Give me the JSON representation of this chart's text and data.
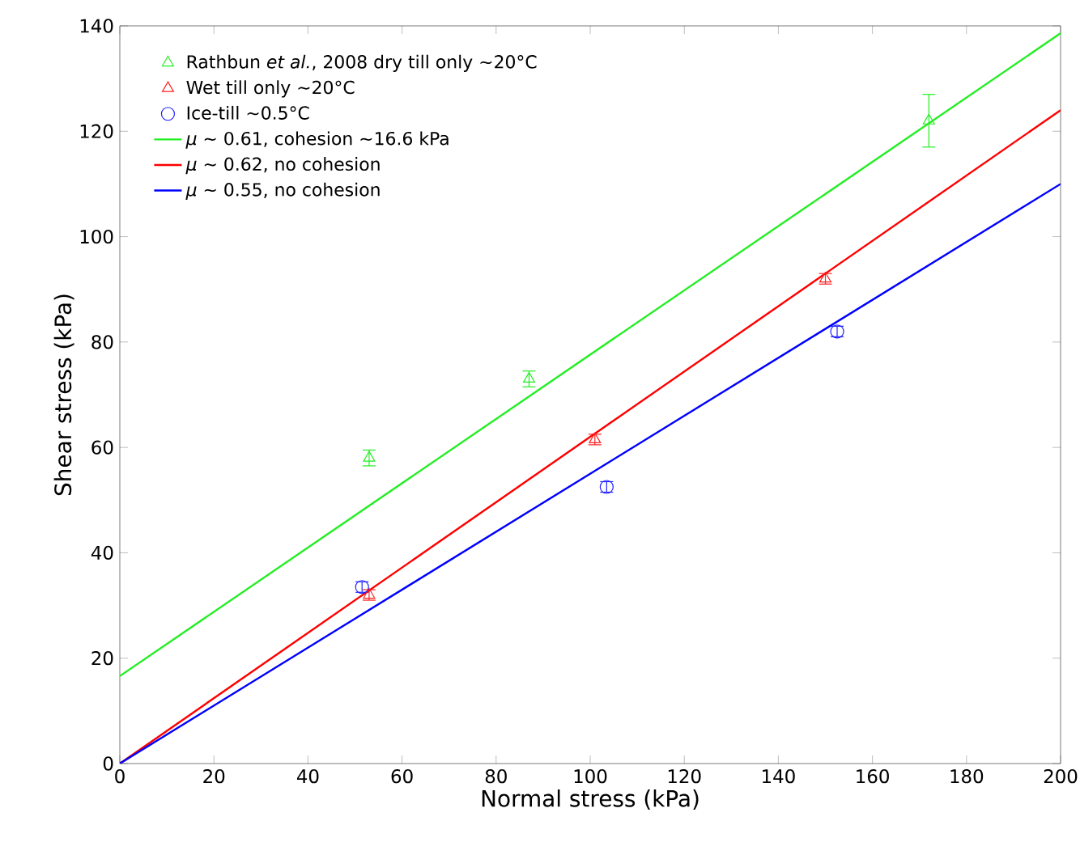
{
  "chart_data": {
    "type": "scatter",
    "xlabel": "Normal stress (kPa)",
    "ylabel": "Shear stress (kPa)",
    "xlim": [
      0,
      200
    ],
    "ylim": [
      0,
      140
    ],
    "xticks": [
      0,
      20,
      40,
      60,
      80,
      100,
      120,
      140,
      160,
      180,
      200
    ],
    "yticks": [
      0,
      20,
      40,
      60,
      80,
      100,
      120,
      140
    ],
    "grid": false,
    "legend": "top left",
    "series": [
      {
        "name": "Rathbun *et al.*, 2008 dry till only ~20°C",
        "marker": "triangle",
        "color": "#22ee22",
        "x": [
          53,
          87,
          172
        ],
        "values": [
          58,
          73,
          122
        ],
        "errors": [
          1.5,
          1.5,
          5
        ]
      },
      {
        "name": "Wet till only ~20°C",
        "marker": "triangle",
        "color": "#ff2020",
        "x": [
          53,
          101,
          150
        ],
        "values": [
          32,
          61.5,
          92
        ],
        "errors": [
          1,
          1,
          1
        ]
      },
      {
        "name": "Ice-till ~0.5°C",
        "marker": "circle",
        "color": "#2020ff",
        "x": [
          51.5,
          103.5,
          152.5
        ],
        "values": [
          33.5,
          52.5,
          82
        ],
        "errors": [
          1,
          1,
          1
        ]
      },
      {
        "name": "*μ* ~ 0.61, cohesion ~16.6 kPa",
        "type": "line",
        "marker": "none",
        "color": "#22ee22",
        "x": [
          0,
          200
        ],
        "values": [
          16.6,
          138.6
        ]
      },
      {
        "name": "*μ* ~ 0.62, no cohesion",
        "type": "line",
        "marker": "none",
        "color": "#ff0000",
        "x": [
          0,
          200
        ],
        "values": [
          0,
          124
        ]
      },
      {
        "name": "*μ* ~ 0.55, no cohesion",
        "type": "line",
        "marker": "none",
        "color": "#0000ff",
        "x": [
          0,
          200
        ],
        "values": [
          0,
          110
        ]
      }
    ]
  }
}
